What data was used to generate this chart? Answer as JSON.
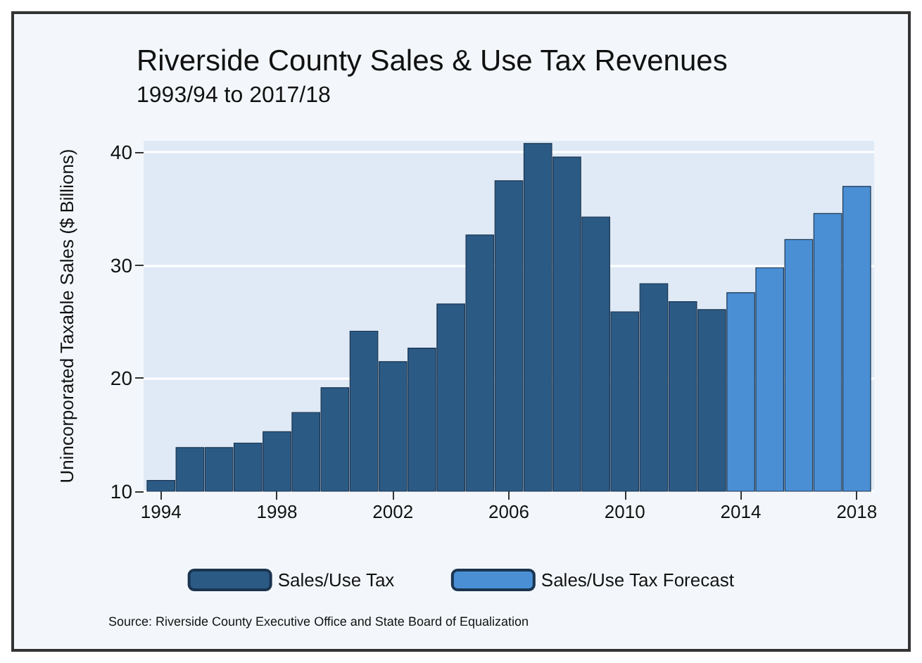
{
  "chart_data": {
    "type": "bar",
    "title": "Riverside County Sales & Use Tax Revenues",
    "subtitle": "1993/94 to 2017/18",
    "ylabel": "Unincorporated Taxable Sales ($ Billions)",
    "series": [
      {
        "name": "Sales/Use Tax",
        "color": "#2b5a85",
        "x": [
          1994,
          1995,
          1996,
          1997,
          1998,
          1999,
          2000,
          2001,
          2002,
          2003,
          2004,
          2005,
          2006,
          2007,
          2008,
          2009,
          2010,
          2011,
          2012,
          2013
        ],
        "values": [
          11,
          13.9,
          13.9,
          14.3,
          15.3,
          17,
          19.2,
          24.2,
          21.5,
          22.7,
          26.6,
          32.7,
          37.5,
          40.8,
          39.6,
          34.3,
          25.9,
          28.4,
          26.8,
          26.1
        ]
      },
      {
        "name": "Sales/Use Tax Forecast",
        "color": "#4a8fd4",
        "x": [
          2014,
          2015,
          2016,
          2017,
          2018
        ],
        "values": [
          27.6,
          29.8,
          32.3,
          34.6,
          37
        ]
      }
    ],
    "xlim": [
      1993.4,
      2018.6
    ],
    "xticks": [
      1994,
      1998,
      2002,
      2006,
      2010,
      2014,
      2018
    ],
    "ylim": [
      10,
      41
    ],
    "yticks": [
      10,
      20,
      30,
      40
    ],
    "grid": "y",
    "legend": "bottom",
    "annotations": [
      "Source: Riverside County Executive Office and State Board of Equalization"
    ]
  }
}
